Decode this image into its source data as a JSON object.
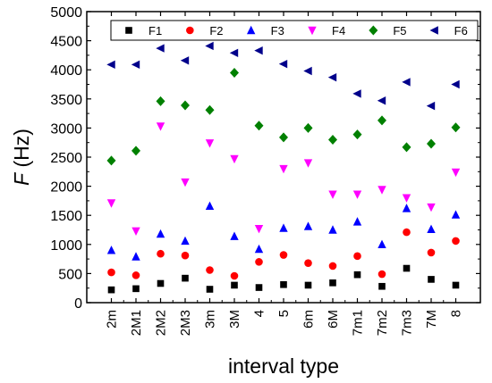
{
  "chart_data": {
    "type": "scatter",
    "xlabel": "interval type",
    "ylabel_symbol": "F",
    "ylabel_unit": " (Hz)",
    "ylim": [
      0,
      5000
    ],
    "yticks": [
      0,
      500,
      1000,
      1500,
      2000,
      2500,
      3000,
      3500,
      4000,
      4500,
      5000
    ],
    "categories": [
      "2m",
      "2M1",
      "2M2",
      "2M3",
      "3m",
      "3M",
      "4",
      "5",
      "6m",
      "6M",
      "7m1",
      "7m2",
      "7m3",
      "7M",
      "8"
    ],
    "legend_position": "top",
    "series": [
      {
        "name": "F1",
        "marker": "square",
        "color": "#000000",
        "values": [
          220,
          240,
          330,
          420,
          230,
          300,
          260,
          310,
          300,
          340,
          480,
          280,
          590,
          400,
          300
        ]
      },
      {
        "name": "F2",
        "marker": "circle",
        "color": "#ff0000",
        "values": [
          520,
          470,
          840,
          810,
          560,
          460,
          700,
          820,
          680,
          630,
          800,
          490,
          1210,
          860,
          1060
        ]
      },
      {
        "name": "F3",
        "marker": "triangle-up",
        "color": "#0000ff",
        "values": [
          900,
          790,
          1180,
          1060,
          1660,
          1140,
          920,
          1280,
          1310,
          1250,
          1390,
          1000,
          1620,
          1260,
          1510
        ]
      },
      {
        "name": "F4",
        "marker": "triangle-down",
        "color": "#ff00ff",
        "values": [
          1710,
          1230,
          3030,
          2070,
          2740,
          2470,
          1270,
          2300,
          2400,
          1860,
          1860,
          1940,
          1800,
          1640,
          2240
        ]
      },
      {
        "name": "F5",
        "marker": "diamond",
        "color": "#008000",
        "values": [
          2440,
          2610,
          3460,
          3390,
          3310,
          3950,
          3040,
          2840,
          3000,
          2800,
          2890,
          3130,
          2670,
          2730,
          3010
        ]
      },
      {
        "name": "F6",
        "marker": "triangle-left",
        "color": "#00008b",
        "values": [
          4090,
          4090,
          4370,
          4160,
          4410,
          4290,
          4330,
          4100,
          3980,
          3870,
          3590,
          3470,
          3790,
          3380,
          3750
        ]
      }
    ]
  }
}
